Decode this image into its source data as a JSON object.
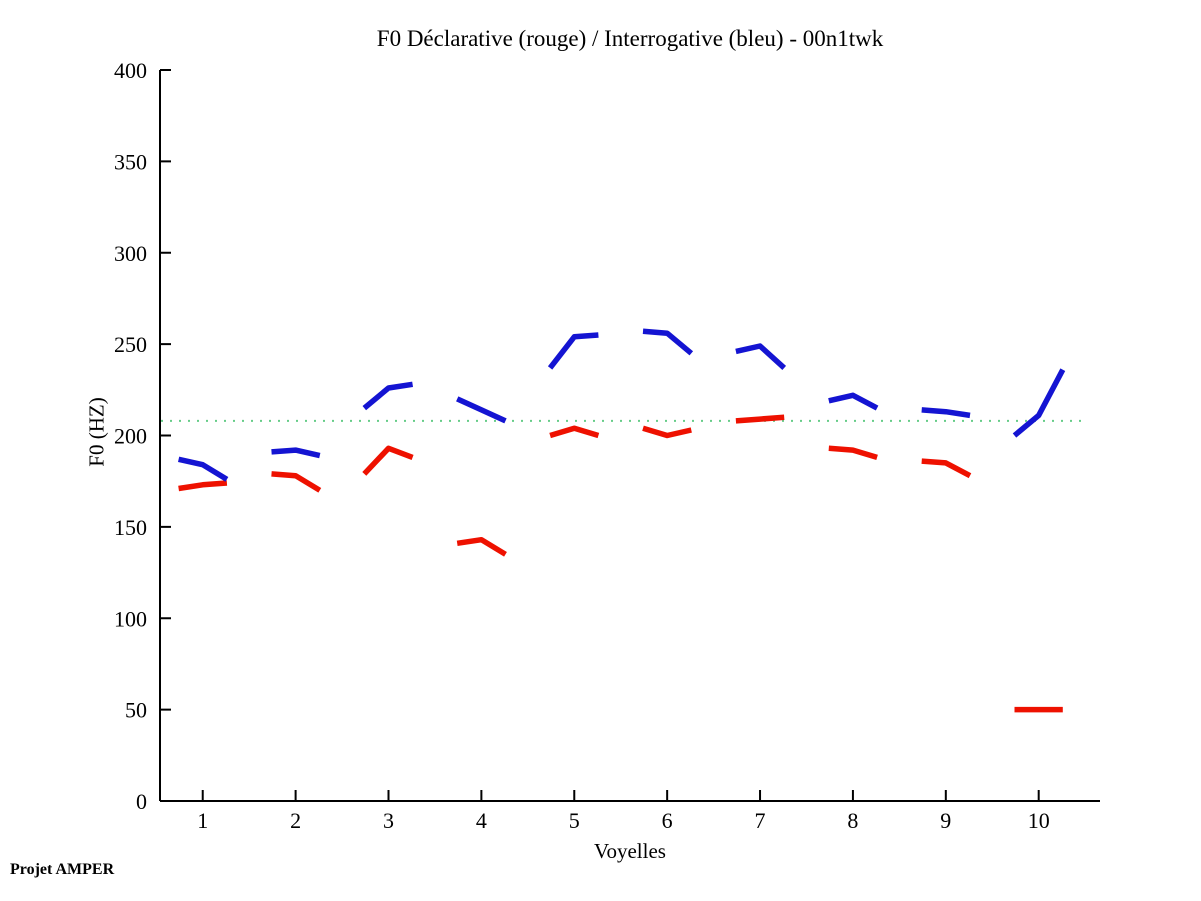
{
  "watermark": "Projet AMPER",
  "chart_data": {
    "type": "line",
    "title": "F0 Déclarative (rouge) / Interrogative (bleu) - 00n1twk",
    "xlabel": "Voyelles",
    "ylabel": "F0 (HZ)",
    "xlim": [
      0.54,
      10.66
    ],
    "ylim": [
      0,
      400
    ],
    "xticks": [
      1,
      2,
      3,
      4,
      5,
      6,
      7,
      8,
      9,
      10
    ],
    "yticks": [
      0,
      50,
      100,
      150,
      200,
      250,
      300,
      350,
      400
    ],
    "grid": false,
    "legend_position": "none",
    "reference_line": {
      "value": 208,
      "color": "#66cc88",
      "style": "dotted"
    },
    "point_offsets": [
      -0.26,
      0,
      0.26
    ],
    "series": [
      {
        "name": "declarative",
        "label": "Déclarative (rouge)",
        "color": "#ee1100",
        "segments": [
          [
            171,
            173,
            174
          ],
          [
            179,
            178,
            170
          ],
          [
            179,
            193,
            188
          ],
          [
            141,
            143,
            135
          ],
          [
            200,
            204,
            200
          ],
          [
            204,
            200,
            203
          ],
          [
            208,
            209,
            210
          ],
          [
            193,
            192,
            188
          ],
          [
            186,
            185,
            178
          ],
          [
            50,
            50,
            50
          ]
        ]
      },
      {
        "name": "interrogative",
        "label": "Interrogative (bleu)",
        "color": "#1414d2",
        "segments": [
          [
            187,
            184,
            176
          ],
          [
            191,
            192,
            189
          ],
          [
            215,
            226,
            228
          ],
          [
            220,
            214,
            208
          ],
          [
            237,
            254,
            255
          ],
          [
            257,
            256,
            245
          ],
          [
            246,
            249,
            237
          ],
          [
            219,
            222,
            215
          ],
          [
            214,
            213,
            211
          ],
          [
            200,
            211,
            236
          ]
        ]
      }
    ]
  }
}
